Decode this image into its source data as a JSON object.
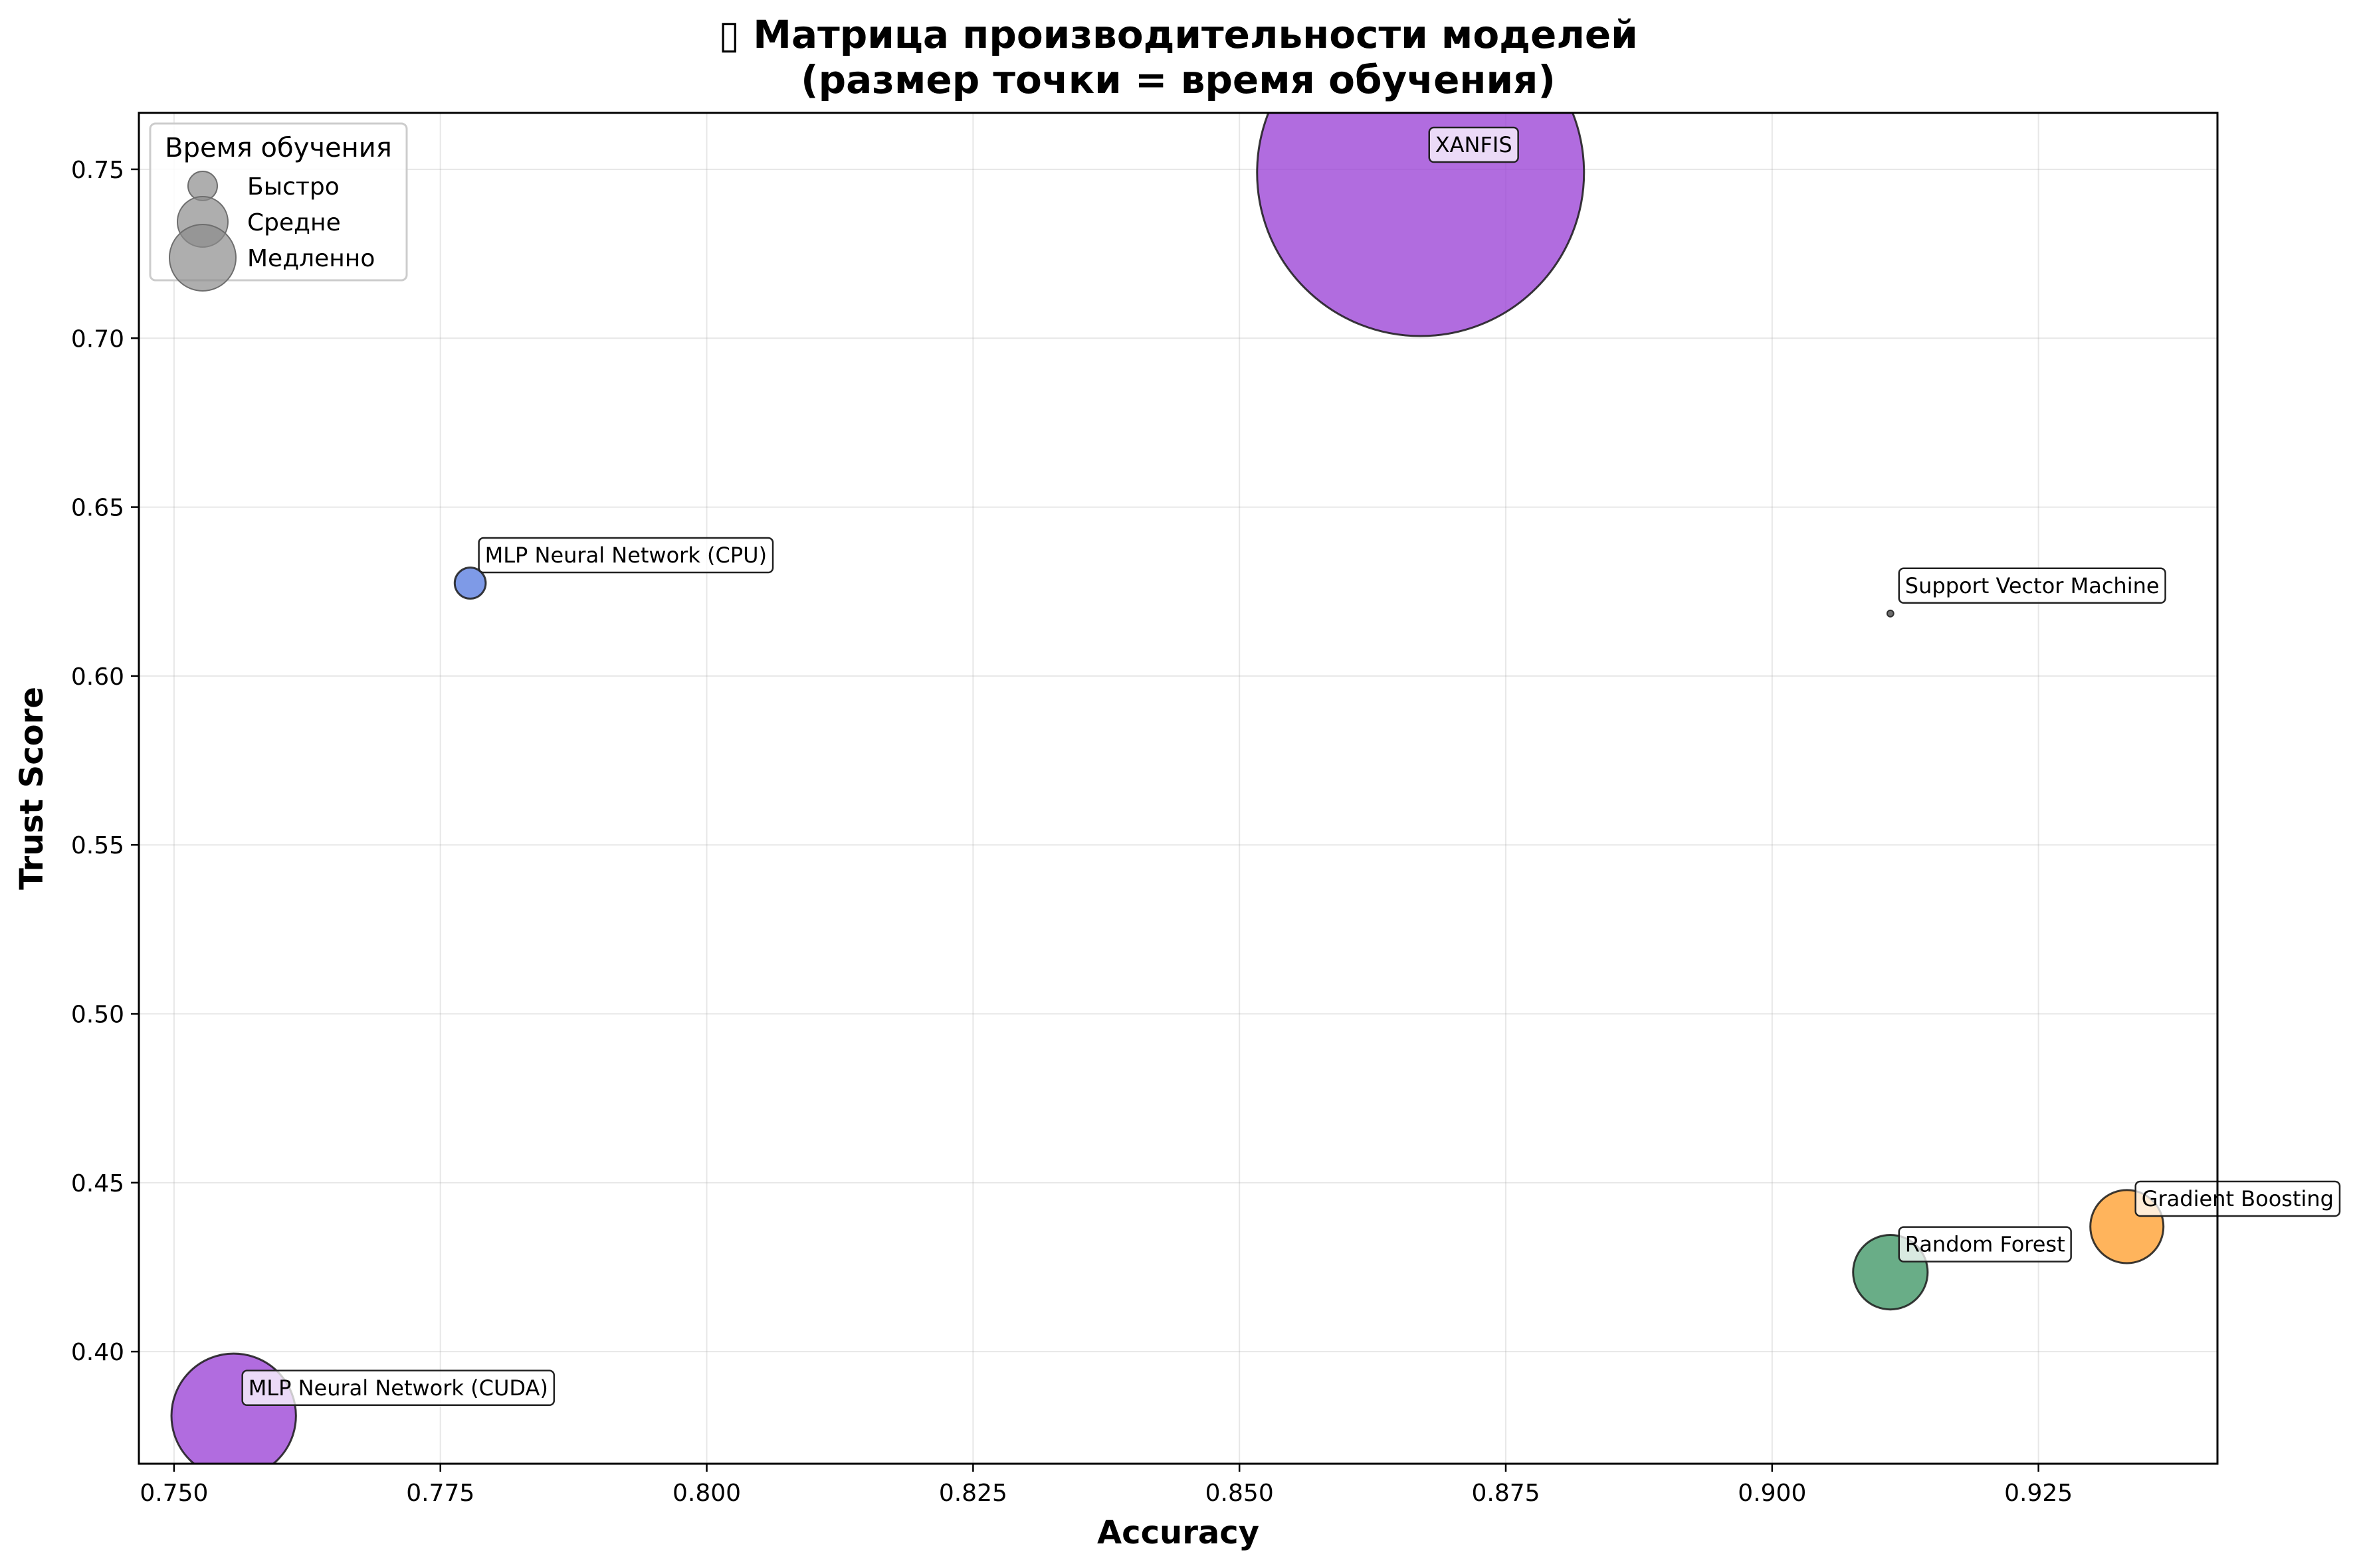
{
  "chart_data": {
    "type": "scatter",
    "title_icon": "chart-icon",
    "title_line1": "Матрица производительности моделей",
    "title_line2": "(размер точки = время обучения)",
    "xlabel": "Accuracy",
    "ylabel": "Trust Score",
    "xlim": [
      0.7467,
      0.9418
    ],
    "ylim": [
      0.3668,
      0.7667
    ],
    "xticks": [
      0.75,
      0.775,
      0.8,
      0.825,
      0.85,
      0.875,
      0.9,
      0.925
    ],
    "xtick_labels": [
      "0.750",
      "0.775",
      "0.800",
      "0.825",
      "0.850",
      "0.875",
      "0.900",
      "0.925"
    ],
    "yticks": [
      0.4,
      0.45,
      0.5,
      0.55,
      0.6,
      0.65,
      0.7,
      0.75
    ],
    "ytick_labels": [
      "0.40",
      "0.45",
      "0.50",
      "0.55",
      "0.60",
      "0.65",
      "0.70",
      "0.75"
    ],
    "grid": true,
    "legend_placement": "top-left",
    "legend": {
      "title": "Время обучения",
      "items": [
        {
          "label": "Быстро",
          "size": "small"
        },
        {
          "label": "Средне",
          "size": "medium"
        },
        {
          "label": "Медленно",
          "size": "large"
        }
      ]
    },
    "point_size_meaning": "время обучения",
    "series": [
      {
        "name": "XANFIS",
        "x": 0.867,
        "y": 0.749,
        "relative_size": 100,
        "color": "#9b42d6"
      },
      {
        "name": "MLP Neural Network (CPU)",
        "x": 0.7778,
        "y": 0.6275,
        "relative_size": 0.9,
        "color": "#5a7de0"
      },
      {
        "name": "Support Vector Machine",
        "x": 0.9111,
        "y": 0.6185,
        "relative_size": 0.04,
        "color": "#444444"
      },
      {
        "name": "Gradient Boosting",
        "x": 0.9333,
        "y": 0.437,
        "relative_size": 5,
        "color": "#ff9f2e"
      },
      {
        "name": "Random Forest",
        "x": 0.9111,
        "y": 0.4235,
        "relative_size": 5.2,
        "color": "#3f9665"
      },
      {
        "name": "MLP Neural Network (CUDA)",
        "x": 0.7556,
        "y": 0.381,
        "relative_size": 14.5,
        "color": "#9b42d6"
      }
    ]
  }
}
